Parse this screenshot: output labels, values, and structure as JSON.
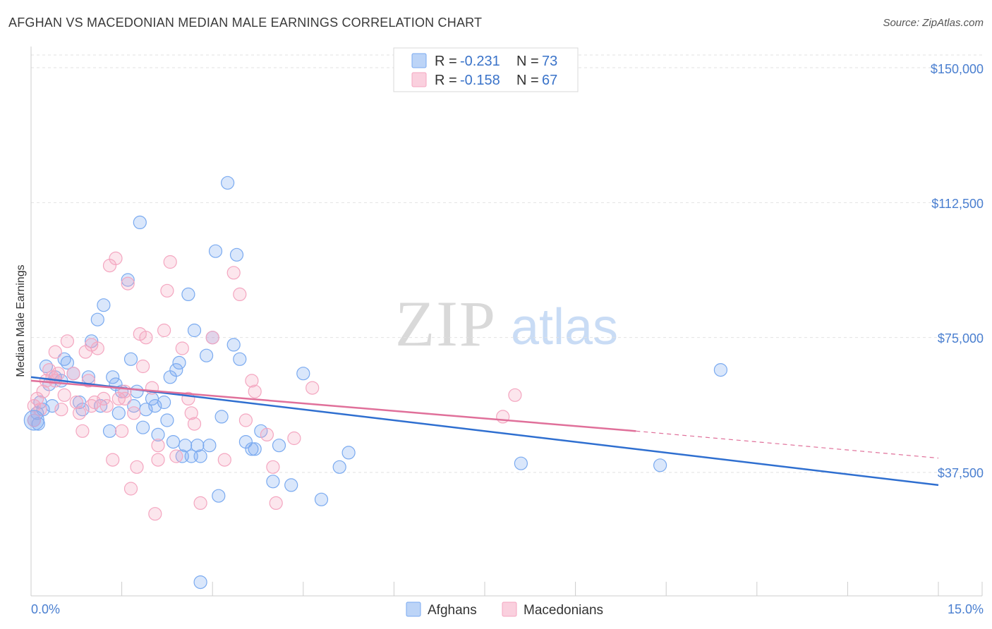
{
  "header": {
    "title": "AFGHAN VS MACEDONIAN MEDIAN MALE EARNINGS CORRELATION CHART",
    "source": "Source: ZipAtlas.com"
  },
  "watermark": {
    "zip": "ZIP",
    "atlas": "atlas"
  },
  "legend_box": {
    "rows": [
      {
        "r_label": "R = ",
        "r_value": "-0.231",
        "n_label": "N = ",
        "n_value": "73",
        "color": "#7aaaf0"
      },
      {
        "r_label": "R = ",
        "r_value": "-0.158",
        "n_label": "N = ",
        "n_value": "67",
        "color": "#f4a6c0"
      }
    ]
  },
  "chart_data": {
    "type": "scatter",
    "title": "AFGHAN VS MACEDONIAN MEDIAN MALE EARNINGS CORRELATION CHART",
    "xlabel": "",
    "ylabel": "Median Male Earnings",
    "xlim": [
      0,
      15
    ],
    "ylim": [
      0,
      154000
    ],
    "x_tick_labels": [
      "0.0%",
      "15.0%"
    ],
    "y_ticks": [
      37500,
      75000,
      112500,
      150000
    ],
    "y_tick_labels": [
      "$37,500",
      "$75,000",
      "$112,500",
      "$150,000"
    ],
    "legend": [
      "Afghans",
      "Macedonians"
    ],
    "series": [
      {
        "name": "Afghans",
        "color": "#7aaaf0",
        "line_color": "#2f6fd0",
        "r": -0.231,
        "n": 73,
        "trend": {
          "x": [
            0,
            15
          ],
          "y": [
            64000,
            34000
          ]
        },
        "points": [
          [
            0.05,
            52000
          ],
          [
            0.1,
            54000
          ],
          [
            0.12,
            51000
          ],
          [
            0.2,
            55000
          ],
          [
            0.25,
            67000
          ],
          [
            0.3,
            62000
          ],
          [
            0.35,
            56000
          ],
          [
            0.4,
            64000
          ],
          [
            0.5,
            63000
          ],
          [
            0.55,
            69000
          ],
          [
            0.6,
            68000
          ],
          [
            0.7,
            65000
          ],
          [
            0.8,
            57000
          ],
          [
            0.85,
            55000
          ],
          [
            0.95,
            64000
          ],
          [
            1.0,
            74000
          ],
          [
            1.1,
            80000
          ],
          [
            1.15,
            56000
          ],
          [
            1.2,
            84000
          ],
          [
            1.3,
            49000
          ],
          [
            1.35,
            64000
          ],
          [
            1.4,
            62000
          ],
          [
            1.45,
            54000
          ],
          [
            1.5,
            60000
          ],
          [
            1.6,
            91000
          ],
          [
            1.65,
            69000
          ],
          [
            1.7,
            56000
          ],
          [
            1.75,
            60000
          ],
          [
            1.8,
            107000
          ],
          [
            1.85,
            50000
          ],
          [
            1.9,
            55000
          ],
          [
            2.0,
            58000
          ],
          [
            2.05,
            56000
          ],
          [
            2.1,
            48000
          ],
          [
            2.2,
            57000
          ],
          [
            2.25,
            52000
          ],
          [
            2.3,
            64000
          ],
          [
            2.35,
            46000
          ],
          [
            2.4,
            66000
          ],
          [
            2.45,
            68000
          ],
          [
            2.5,
            42000
          ],
          [
            2.55,
            45000
          ],
          [
            2.6,
            87000
          ],
          [
            2.65,
            42000
          ],
          [
            2.7,
            77000
          ],
          [
            2.75,
            45000
          ],
          [
            2.8,
            42000
          ],
          [
            2.9,
            70000
          ],
          [
            2.95,
            45000
          ],
          [
            3.0,
            75000
          ],
          [
            3.05,
            99000
          ],
          [
            3.1,
            31000
          ],
          [
            3.15,
            53000
          ],
          [
            3.25,
            118000
          ],
          [
            3.35,
            73000
          ],
          [
            3.4,
            98000
          ],
          [
            3.45,
            69000
          ],
          [
            3.55,
            46000
          ],
          [
            3.65,
            44000
          ],
          [
            3.7,
            44000
          ],
          [
            3.8,
            49000
          ],
          [
            4.0,
            35000
          ],
          [
            4.1,
            45000
          ],
          [
            4.3,
            34000
          ],
          [
            4.5,
            65000
          ],
          [
            4.8,
            30000
          ],
          [
            5.1,
            39000
          ],
          [
            5.25,
            43000
          ],
          [
            2.8,
            7000
          ],
          [
            8.1,
            40000
          ],
          [
            10.4,
            39500
          ],
          [
            11.4,
            66000
          ],
          [
            0.15,
            57000
          ]
        ]
      },
      {
        "name": "Macedonians",
        "color": "#f4a6c0",
        "line_color": "#e0709a",
        "r": -0.158,
        "n": 67,
        "trend": {
          "x": [
            0,
            10
          ],
          "y": [
            63000,
            49000
          ]
        },
        "trend_dashed": {
          "x": [
            10,
            15
          ],
          "y": [
            49000,
            41500
          ]
        },
        "points": [
          [
            0.05,
            56000
          ],
          [
            0.1,
            58000
          ],
          [
            0.15,
            55000
          ],
          [
            0.2,
            60000
          ],
          [
            0.25,
            63000
          ],
          [
            0.3,
            66000
          ],
          [
            0.35,
            64000
          ],
          [
            0.4,
            71000
          ],
          [
            0.45,
            65000
          ],
          [
            0.5,
            55000
          ],
          [
            0.55,
            59000
          ],
          [
            0.6,
            74000
          ],
          [
            0.7,
            65000
          ],
          [
            0.75,
            57000
          ],
          [
            0.8,
            54000
          ],
          [
            0.85,
            49000
          ],
          [
            0.9,
            71000
          ],
          [
            0.95,
            63000
          ],
          [
            1.0,
            73000
          ],
          [
            1.05,
            57000
          ],
          [
            1.1,
            72000
          ],
          [
            1.2,
            58000
          ],
          [
            1.25,
            56000
          ],
          [
            1.3,
            95000
          ],
          [
            1.35,
            41000
          ],
          [
            1.4,
            97000
          ],
          [
            1.45,
            58000
          ],
          [
            1.5,
            49000
          ],
          [
            1.55,
            58000
          ],
          [
            1.6,
            90000
          ],
          [
            1.65,
            33000
          ],
          [
            1.7,
            54000
          ],
          [
            1.75,
            39000
          ],
          [
            1.8,
            76000
          ],
          [
            1.85,
            67000
          ],
          [
            1.9,
            75000
          ],
          [
            2.0,
            61000
          ],
          [
            2.05,
            26000
          ],
          [
            2.1,
            41000
          ],
          [
            2.2,
            77000
          ],
          [
            2.25,
            88000
          ],
          [
            2.3,
            96000
          ],
          [
            2.4,
            42000
          ],
          [
            2.5,
            72000
          ],
          [
            2.6,
            58000
          ],
          [
            2.65,
            54000
          ],
          [
            2.7,
            51000
          ],
          [
            2.8,
            29000
          ],
          [
            3.0,
            75000
          ],
          [
            3.2,
            41000
          ],
          [
            3.35,
            93000
          ],
          [
            3.45,
            87000
          ],
          [
            3.55,
            52000
          ],
          [
            3.65,
            63000
          ],
          [
            3.7,
            60000
          ],
          [
            3.9,
            48000
          ],
          [
            4.0,
            39000
          ],
          [
            4.05,
            29000
          ],
          [
            4.35,
            47000
          ],
          [
            4.65,
            61000
          ],
          [
            8.0,
            59000
          ],
          [
            7.8,
            53000
          ],
          [
            0.05,
            52000
          ],
          [
            1.0,
            56000
          ],
          [
            2.1,
            45000
          ],
          [
            0.4,
            63000
          ],
          [
            1.55,
            60000
          ]
        ]
      }
    ]
  }
}
